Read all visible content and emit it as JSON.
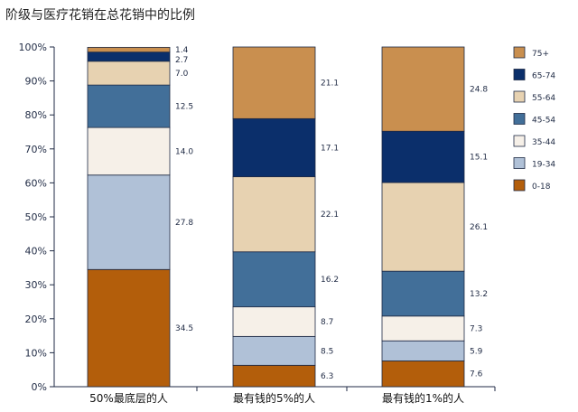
{
  "chart_data": {
    "type": "bar",
    "stacked": true,
    "title": "阶级与医疗花销在总花销中的比例",
    "categories": [
      "50%最底层的人",
      "最有钱的5%的人",
      "最有钱的1%的人"
    ],
    "y_ticks": [
      "0%",
      "10%",
      "20%",
      "30%",
      "40%",
      "50%",
      "60%",
      "70%",
      "80%",
      "90%",
      "100%"
    ],
    "ylim": [
      0,
      100
    ],
    "legend_position": "right",
    "series": [
      {
        "name": "0-18",
        "color": "#b35e0b",
        "values": [
          34.5,
          6.3,
          7.6
        ],
        "labels": [
          "34.5",
          "6.3",
          "7.6"
        ]
      },
      {
        "name": "19-34",
        "color": "#b0c1d7",
        "values": [
          27.8,
          8.5,
          5.9
        ],
        "labels": [
          "27.8",
          "8.5",
          "5.9"
        ]
      },
      {
        "name": "35-44",
        "color": "#f6f0e8",
        "values": [
          14.0,
          8.7,
          7.3
        ],
        "labels": [
          "14.0",
          "8.7",
          "7.3"
        ]
      },
      {
        "name": "45-54",
        "color": "#426f99",
        "values": [
          12.5,
          16.2,
          13.2
        ],
        "labels": [
          "12.5",
          "16.2",
          "13.2"
        ]
      },
      {
        "name": "55-64",
        "color": "#e7d2b1",
        "values": [
          7.0,
          22.1,
          26.1
        ],
        "labels": [
          "7.0",
          "22.1",
          "26.1"
        ]
      },
      {
        "name": "65-74",
        "color": "#0b2f6b",
        "values": [
          2.7,
          17.1,
          15.1
        ],
        "labels": [
          "2.7",
          "17.1",
          "15.1"
        ]
      },
      {
        "name": "75+",
        "color": "#c98f4f",
        "values": [
          1.4,
          21.1,
          24.8
        ],
        "labels": [
          "1.4",
          "21.1",
          "24.8"
        ]
      }
    ],
    "legend_order": [
      "75+",
      "65-74",
      "55-64",
      "45-54",
      "35-44",
      "19-34",
      "0-18"
    ]
  }
}
